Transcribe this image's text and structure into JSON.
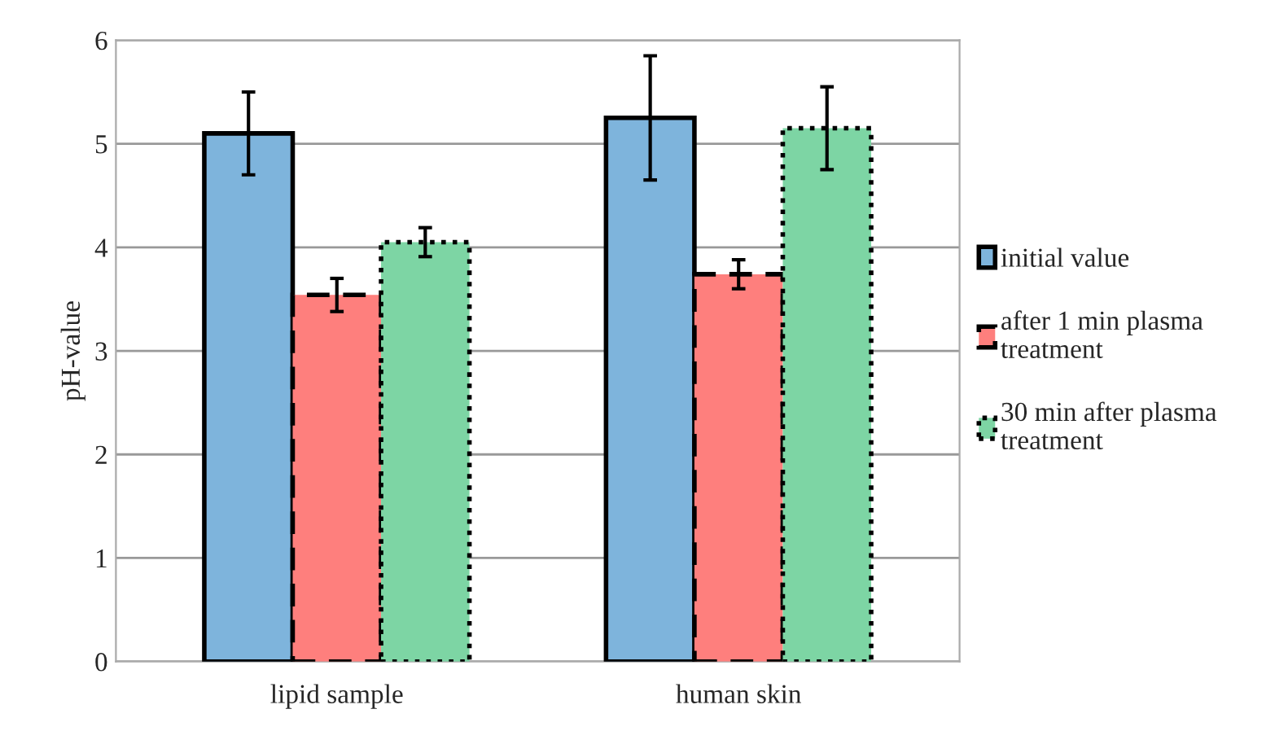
{
  "chart_data": {
    "type": "bar",
    "ylabel": "pH-value",
    "categories": [
      "lipid sample",
      "human skin"
    ],
    "series": [
      {
        "name": "initial value",
        "color": "#7eb4dc",
        "values": [
          5.1,
          5.25
        ],
        "errors": [
          0.4,
          0.6
        ],
        "line_style": "solid"
      },
      {
        "name": "after 1 min plasma treatment",
        "color": "#fe7f7d",
        "values": [
          3.54,
          3.74
        ],
        "errors": [
          0.16,
          0.14
        ],
        "line_style": "dashed"
      },
      {
        "name": "30 min after plasma treatment",
        "color": "#7dd5a4",
        "values": [
          4.05,
          5.15
        ],
        "errors": [
          0.14,
          0.4
        ],
        "line_style": "dotted"
      }
    ],
    "ylim": [
      0,
      6
    ],
    "yticks": [
      0,
      1,
      2,
      3,
      4,
      5,
      6
    ],
    "grid": "y",
    "legend": "right"
  }
}
